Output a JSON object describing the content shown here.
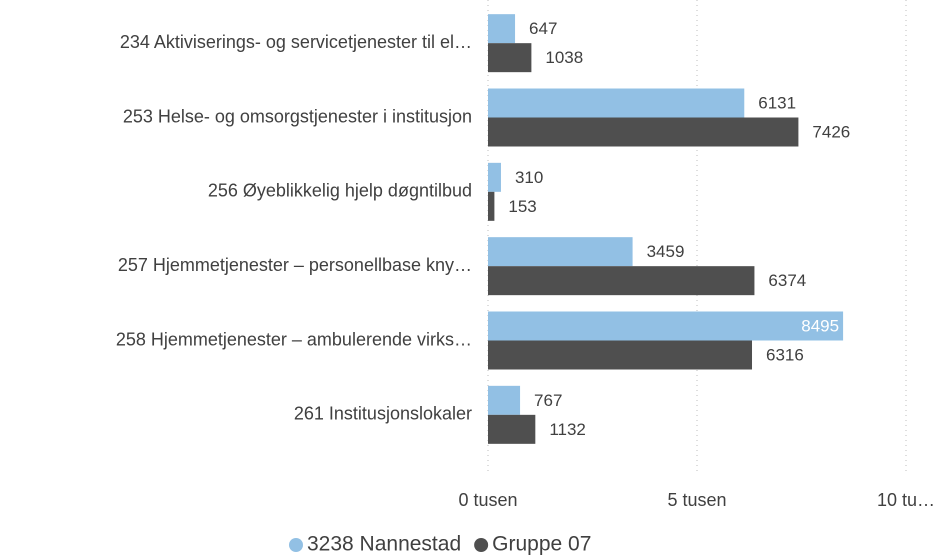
{
  "chart_data": {
    "type": "bar",
    "orientation": "horizontal",
    "categories": [
      "234 Aktiviserings- og servicetjenester til el…",
      "253 Helse- og omsorgstjenester i institusjon",
      "256 Øyeblikkelig hjelp døgntilbud",
      "257 Hjemmetjenester – personellbase kny…",
      "258 Hjemmetjenester – ambulerende virks…",
      "261 Institusjonslokaler"
    ],
    "series": [
      {
        "name": "3238 Nannestad",
        "color": "#92c0e4",
        "values": [
          647,
          6131,
          310,
          3459,
          8495,
          767
        ]
      },
      {
        "name": "Gruppe 07",
        "color": "#4f4f4f",
        "values": [
          1038,
          7426,
          153,
          6374,
          6316,
          1132
        ]
      }
    ],
    "xlim": [
      0,
      10000
    ],
    "xticks": [
      {
        "value": 0,
        "label": "0 tusen"
      },
      {
        "value": 5000,
        "label": "5 tusen"
      },
      {
        "value": 10000,
        "label": "10 tu…"
      }
    ],
    "grid": true,
    "legend": "bottom"
  }
}
